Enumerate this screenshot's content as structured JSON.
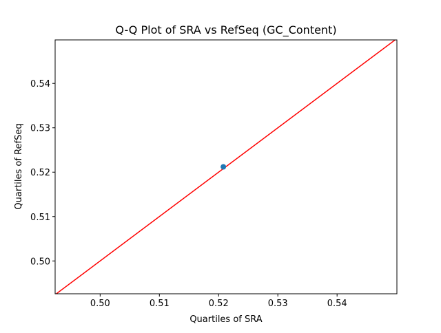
{
  "chart_data": {
    "type": "scatter",
    "title": "Q-Q Plot of SRA vs RefSeq (GC_Content)",
    "x_label": "Quartiles of SRA",
    "y_label": "Quartiles of RefSeq",
    "series": [
      {
        "color": "#1f77b4",
        "x": [
          0.5208
        ],
        "values": [
          0.5212
        ]
      }
    ],
    "reference_line": {
      "color": "#ff0000",
      "x": [
        0.4924,
        0.5501
      ],
      "values": [
        0.4924,
        0.5501
      ]
    },
    "xlim": [
      0.4924,
      0.5501
    ],
    "ylim": [
      0.4926,
      0.5498
    ],
    "xticks": [
      {
        "value": 0.5,
        "label": "0.50"
      },
      {
        "value": 0.51,
        "label": "0.51"
      },
      {
        "value": 0.52,
        "label": "0.52"
      },
      {
        "value": 0.53,
        "label": "0.53"
      },
      {
        "value": 0.54,
        "label": "0.54"
      }
    ],
    "yticks": [
      {
        "value": 0.5,
        "label": "0.50"
      },
      {
        "value": 0.51,
        "label": "0.51"
      },
      {
        "value": 0.52,
        "label": "0.52"
      },
      {
        "value": 0.53,
        "label": "0.53"
      },
      {
        "value": 0.54,
        "label": "0.54"
      }
    ]
  }
}
